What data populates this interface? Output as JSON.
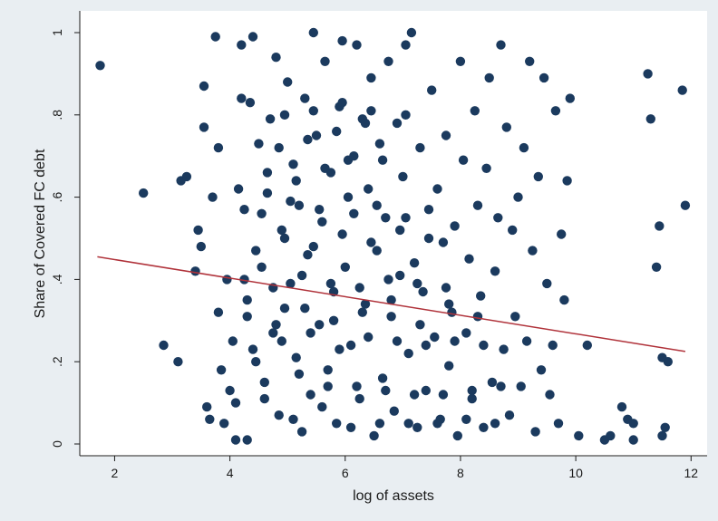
{
  "chart_data": {
    "type": "scatter",
    "xlabel": "log of assets",
    "ylabel": "Share of Covered FC debt",
    "xlim": [
      1.6,
      12.2
    ],
    "ylim": [
      0,
      1
    ],
    "xticks": [
      2,
      4,
      6,
      8,
      10,
      12
    ],
    "yticks": [
      0,
      0.2,
      0.4,
      0.6,
      0.8,
      1
    ],
    "ytick_labels": [
      "0",
      ".2",
      ".4",
      ".6",
      ".8",
      "1"
    ],
    "grid": false,
    "legend": "none",
    "colors": {
      "marker": "#1b3a5e",
      "fit_line": "#b0323a",
      "plot_bg": "#ffffff",
      "outer_bg": "#e9eef2"
    },
    "fit_line": {
      "x": [
        1.7,
        11.9
      ],
      "y": [
        0.455,
        0.225
      ]
    },
    "series": [
      {
        "points": [
          [
            1.75,
            0.92
          ],
          [
            2.5,
            0.61
          ],
          [
            2.85,
            0.24
          ],
          [
            3.1,
            0.2
          ],
          [
            3.15,
            0.64
          ],
          [
            3.25,
            0.65
          ],
          [
            3.4,
            0.42
          ],
          [
            3.45,
            0.52
          ],
          [
            3.5,
            0.48
          ],
          [
            3.55,
            0.87
          ],
          [
            3.55,
            0.77
          ],
          [
            3.6,
            0.09
          ],
          [
            3.65,
            0.06
          ],
          [
            3.7,
            0.6
          ],
          [
            3.75,
            0.99
          ],
          [
            3.8,
            0.72
          ],
          [
            3.8,
            0.32
          ],
          [
            3.85,
            0.18
          ],
          [
            3.9,
            0.05
          ],
          [
            3.95,
            0.4
          ],
          [
            4.0,
            0.13
          ],
          [
            4.05,
            0.25
          ],
          [
            4.1,
            0.01
          ],
          [
            4.15,
            0.62
          ],
          [
            4.2,
            0.97
          ],
          [
            4.2,
            0.84
          ],
          [
            4.25,
            0.57
          ],
          [
            4.3,
            0.01
          ],
          [
            4.3,
            0.35
          ],
          [
            4.35,
            0.83
          ],
          [
            4.4,
            0.99
          ],
          [
            4.45,
            0.2
          ],
          [
            4.5,
            0.73
          ],
          [
            4.55,
            0.43
          ],
          [
            4.6,
            0.15
          ],
          [
            4.65,
            0.61
          ],
          [
            4.7,
            0.79
          ],
          [
            4.75,
            0.27
          ],
          [
            4.8,
            0.94
          ],
          [
            4.85,
            0.07
          ],
          [
            4.9,
            0.52
          ],
          [
            4.95,
            0.33
          ],
          [
            5.0,
            0.88
          ],
          [
            5.05,
            0.39
          ],
          [
            5.1,
            0.68
          ],
          [
            5.15,
            0.21
          ],
          [
            5.2,
            0.58
          ],
          [
            5.25,
            0.03
          ],
          [
            5.3,
            0.84
          ],
          [
            5.35,
            0.46
          ],
          [
            5.4,
            0.12
          ],
          [
            5.45,
            1.0
          ],
          [
            5.5,
            0.75
          ],
          [
            5.55,
            0.29
          ],
          [
            5.6,
            0.54
          ],
          [
            5.65,
            0.93
          ],
          [
            5.7,
            0.18
          ],
          [
            5.75,
            0.66
          ],
          [
            5.8,
            0.37
          ],
          [
            5.85,
            0.05
          ],
          [
            5.9,
            0.82
          ],
          [
            5.95,
            0.98
          ],
          [
            6.0,
            0.43
          ],
          [
            6.05,
            0.69
          ],
          [
            6.1,
            0.24
          ],
          [
            6.15,
            0.56
          ],
          [
            6.2,
            0.97
          ],
          [
            6.25,
            0.11
          ],
          [
            6.3,
            0.79
          ],
          [
            6.35,
            0.34
          ],
          [
            6.4,
            0.62
          ],
          [
            6.45,
            0.89
          ],
          [
            6.5,
            0.02
          ],
          [
            6.55,
            0.47
          ],
          [
            6.6,
            0.73
          ],
          [
            6.65,
            0.16
          ],
          [
            6.7,
            0.55
          ],
          [
            6.75,
            0.93
          ],
          [
            6.8,
            0.31
          ],
          [
            6.85,
            0.08
          ],
          [
            6.9,
            0.78
          ],
          [
            6.95,
            0.41
          ],
          [
            7.0,
            0.65
          ],
          [
            7.05,
            0.97
          ],
          [
            7.1,
            0.22
          ],
          [
            7.15,
            1.0
          ],
          [
            7.2,
            0.44
          ],
          [
            7.25,
            0.04
          ],
          [
            7.3,
            0.72
          ],
          [
            7.35,
            0.37
          ],
          [
            7.4,
            0.13
          ],
          [
            7.45,
            0.57
          ],
          [
            7.5,
            0.86
          ],
          [
            7.55,
            0.26
          ],
          [
            7.6,
            0.62
          ],
          [
            7.65,
            0.06
          ],
          [
            7.7,
            0.49
          ],
          [
            7.75,
            0.75
          ],
          [
            7.8,
            0.19
          ],
          [
            7.85,
            0.32
          ],
          [
            7.9,
            0.53
          ],
          [
            7.95,
            0.02
          ],
          [
            8.0,
            0.93
          ],
          [
            8.05,
            0.69
          ],
          [
            8.1,
            0.27
          ],
          [
            8.15,
            0.45
          ],
          [
            8.2,
            0.11
          ],
          [
            8.25,
            0.81
          ],
          [
            8.3,
            0.58
          ],
          [
            8.35,
            0.36
          ],
          [
            8.4,
            0.04
          ],
          [
            8.45,
            0.67
          ],
          [
            8.5,
            0.89
          ],
          [
            8.55,
            0.15
          ],
          [
            8.6,
            0.42
          ],
          [
            8.65,
            0.55
          ],
          [
            8.7,
            0.97
          ],
          [
            8.75,
            0.23
          ],
          [
            8.8,
            0.77
          ],
          [
            8.85,
            0.07
          ],
          [
            8.9,
            0.52
          ],
          [
            8.95,
            0.31
          ],
          [
            9.0,
            0.6
          ],
          [
            9.05,
            0.14
          ],
          [
            9.1,
            0.72
          ],
          [
            9.15,
            0.25
          ],
          [
            9.2,
            0.93
          ],
          [
            9.25,
            0.47
          ],
          [
            9.3,
            0.03
          ],
          [
            9.35,
            0.65
          ],
          [
            9.4,
            0.18
          ],
          [
            9.45,
            0.89
          ],
          [
            9.5,
            0.39
          ],
          [
            9.55,
            0.12
          ],
          [
            9.6,
            0.24
          ],
          [
            9.65,
            0.81
          ],
          [
            9.7,
            0.05
          ],
          [
            9.75,
            0.51
          ],
          [
            9.8,
            0.35
          ],
          [
            9.85,
            0.64
          ],
          [
            9.9,
            0.84
          ],
          [
            10.05,
            0.02
          ],
          [
            10.2,
            0.24
          ],
          [
            10.5,
            0.01
          ],
          [
            10.6,
            0.02
          ],
          [
            10.8,
            0.09
          ],
          [
            11.0,
            0.05
          ],
          [
            11.25,
            0.9
          ],
          [
            11.3,
            0.79
          ],
          [
            11.4,
            0.43
          ],
          [
            11.45,
            0.53
          ],
          [
            11.5,
            0.21
          ],
          [
            11.55,
            0.04
          ],
          [
            11.6,
            0.2
          ],
          [
            11.85,
            0.86
          ],
          [
            11.9,
            0.58
          ],
          [
            11.5,
            0.02
          ],
          [
            11.0,
            0.01
          ],
          [
            10.9,
            0.06
          ],
          [
            4.1,
            0.1
          ],
          [
            4.6,
            0.11
          ],
          [
            5.1,
            0.06
          ],
          [
            5.6,
            0.09
          ],
          [
            6.1,
            0.04
          ],
          [
            6.6,
            0.05
          ],
          [
            7.1,
            0.05
          ],
          [
            7.6,
            0.05
          ],
          [
            8.1,
            0.06
          ],
          [
            8.6,
            0.05
          ],
          [
            5.2,
            0.17
          ],
          [
            5.7,
            0.14
          ],
          [
            6.2,
            0.14
          ],
          [
            6.7,
            0.13
          ],
          [
            7.2,
            0.12
          ],
          [
            7.7,
            0.12
          ],
          [
            8.2,
            0.13
          ],
          [
            8.7,
            0.14
          ],
          [
            4.4,
            0.23
          ],
          [
            4.9,
            0.25
          ],
          [
            5.4,
            0.27
          ],
          [
            5.9,
            0.23
          ],
          [
            6.4,
            0.26
          ],
          [
            6.9,
            0.25
          ],
          [
            7.4,
            0.24
          ],
          [
            7.9,
            0.25
          ],
          [
            8.4,
            0.24
          ],
          [
            4.3,
            0.31
          ],
          [
            4.8,
            0.29
          ],
          [
            5.3,
            0.33
          ],
          [
            5.8,
            0.3
          ],
          [
            6.3,
            0.32
          ],
          [
            6.8,
            0.35
          ],
          [
            7.3,
            0.29
          ],
          [
            7.8,
            0.34
          ],
          [
            8.3,
            0.31
          ],
          [
            4.25,
            0.4
          ],
          [
            4.75,
            0.38
          ],
          [
            5.25,
            0.41
          ],
          [
            5.75,
            0.39
          ],
          [
            6.25,
            0.38
          ],
          [
            6.75,
            0.4
          ],
          [
            7.25,
            0.39
          ],
          [
            7.75,
            0.38
          ],
          [
            4.45,
            0.47
          ],
          [
            4.95,
            0.5
          ],
          [
            5.45,
            0.48
          ],
          [
            5.95,
            0.51
          ],
          [
            6.45,
            0.49
          ],
          [
            6.95,
            0.52
          ],
          [
            7.45,
            0.5
          ],
          [
            4.55,
            0.56
          ],
          [
            5.05,
            0.59
          ],
          [
            5.55,
            0.57
          ],
          [
            6.05,
            0.6
          ],
          [
            6.55,
            0.58
          ],
          [
            7.05,
            0.55
          ],
          [
            4.65,
            0.66
          ],
          [
            5.15,
            0.64
          ],
          [
            5.65,
            0.67
          ],
          [
            6.15,
            0.7
          ],
          [
            6.65,
            0.69
          ],
          [
            4.85,
            0.72
          ],
          [
            5.35,
            0.74
          ],
          [
            5.85,
            0.76
          ],
          [
            6.35,
            0.78
          ],
          [
            4.95,
            0.8
          ],
          [
            5.45,
            0.81
          ],
          [
            5.95,
            0.83
          ],
          [
            6.45,
            0.81
          ],
          [
            7.05,
            0.8
          ]
        ]
      }
    ]
  }
}
